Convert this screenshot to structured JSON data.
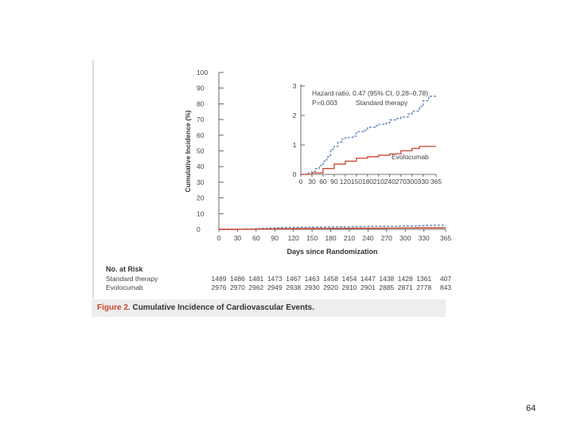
{
  "chart_data": {
    "type": "line",
    "title": "Cumulative Incidence of Cardiovascular Events.",
    "figure_label": "Figure 2.",
    "xlabel": "Days since Randomization",
    "ylabel": "Cumulative Incidence (%)",
    "xlim": [
      0,
      365
    ],
    "ylim": [
      0,
      100
    ],
    "x_ticks": [
      "0",
      "30",
      "60",
      "90",
      "120",
      "150",
      "180",
      "210",
      "240",
      "270",
      "300",
      "330",
      "365"
    ],
    "y_ticks": [
      "0",
      "10",
      "20",
      "30",
      "40",
      "50",
      "60",
      "70",
      "80",
      "90",
      "100"
    ],
    "series": [
      {
        "name": "Standard therapy",
        "color": "#5b7fb6",
        "style": "dashed",
        "points": [
          [
            0,
            0
          ],
          [
            20,
            0.05
          ],
          [
            30,
            0.1
          ],
          [
            40,
            0.2
          ],
          [
            50,
            0.3
          ],
          [
            60,
            0.45
          ],
          [
            70,
            0.6
          ],
          [
            80,
            0.85
          ],
          [
            90,
            0.95
          ],
          [
            100,
            1.1
          ],
          [
            110,
            1.2
          ],
          [
            120,
            1.25
          ],
          [
            140,
            1.3
          ],
          [
            150,
            1.45
          ],
          [
            170,
            1.5
          ],
          [
            180,
            1.6
          ],
          [
            200,
            1.65
          ],
          [
            210,
            1.7
          ],
          [
            230,
            1.75
          ],
          [
            240,
            1.85
          ],
          [
            260,
            1.9
          ],
          [
            270,
            1.95
          ],
          [
            290,
            2.05
          ],
          [
            300,
            2.15
          ],
          [
            320,
            2.3
          ],
          [
            330,
            2.5
          ],
          [
            345,
            2.65
          ],
          [
            365,
            2.7
          ]
        ]
      },
      {
        "name": "Evolocumab",
        "color": "#c7442b",
        "style": "solid",
        "points": [
          [
            0,
            0
          ],
          [
            30,
            0.05
          ],
          [
            60,
            0.2
          ],
          [
            90,
            0.35
          ],
          [
            120,
            0.45
          ],
          [
            150,
            0.55
          ],
          [
            180,
            0.6
          ],
          [
            210,
            0.65
          ],
          [
            240,
            0.7
          ],
          [
            270,
            0.8
          ],
          [
            300,
            0.88
          ],
          [
            320,
            0.95
          ],
          [
            365,
            0.95
          ]
        ]
      }
    ],
    "inset": {
      "xlim": [
        0,
        365
      ],
      "ylim": [
        0,
        3
      ],
      "x_ticks": [
        "0",
        "30",
        "60",
        "90",
        "120",
        "150",
        "180",
        "210",
        "240",
        "270",
        "300",
        "330",
        "365"
      ],
      "y_ticks": [
        "0",
        "1",
        "2",
        "3"
      ],
      "annotation_line1": "Hazard ratio, 0.47 (95% CI, 0.28–0.78)",
      "annotation_line2": "P=0.003",
      "label_standard": "Standard therapy",
      "label_evolocumab": "Evolocumab"
    },
    "risk_table": {
      "heading": "No. at Risk",
      "rows": [
        {
          "label": "Standard therapy",
          "values": [
            "1489",
            "1486",
            "1481",
            "1473",
            "1467",
            "1463",
            "1458",
            "1454",
            "1447",
            "1438",
            "1428",
            "1361",
            "407"
          ]
        },
        {
          "label": "Evolocumab",
          "values": [
            "2976",
            "2970",
            "2962",
            "2949",
            "2938",
            "2930",
            "2920",
            "2910",
            "2901",
            "2885",
            "2871",
            "2778",
            "843"
          ]
        }
      ]
    }
  },
  "page_number": "64"
}
